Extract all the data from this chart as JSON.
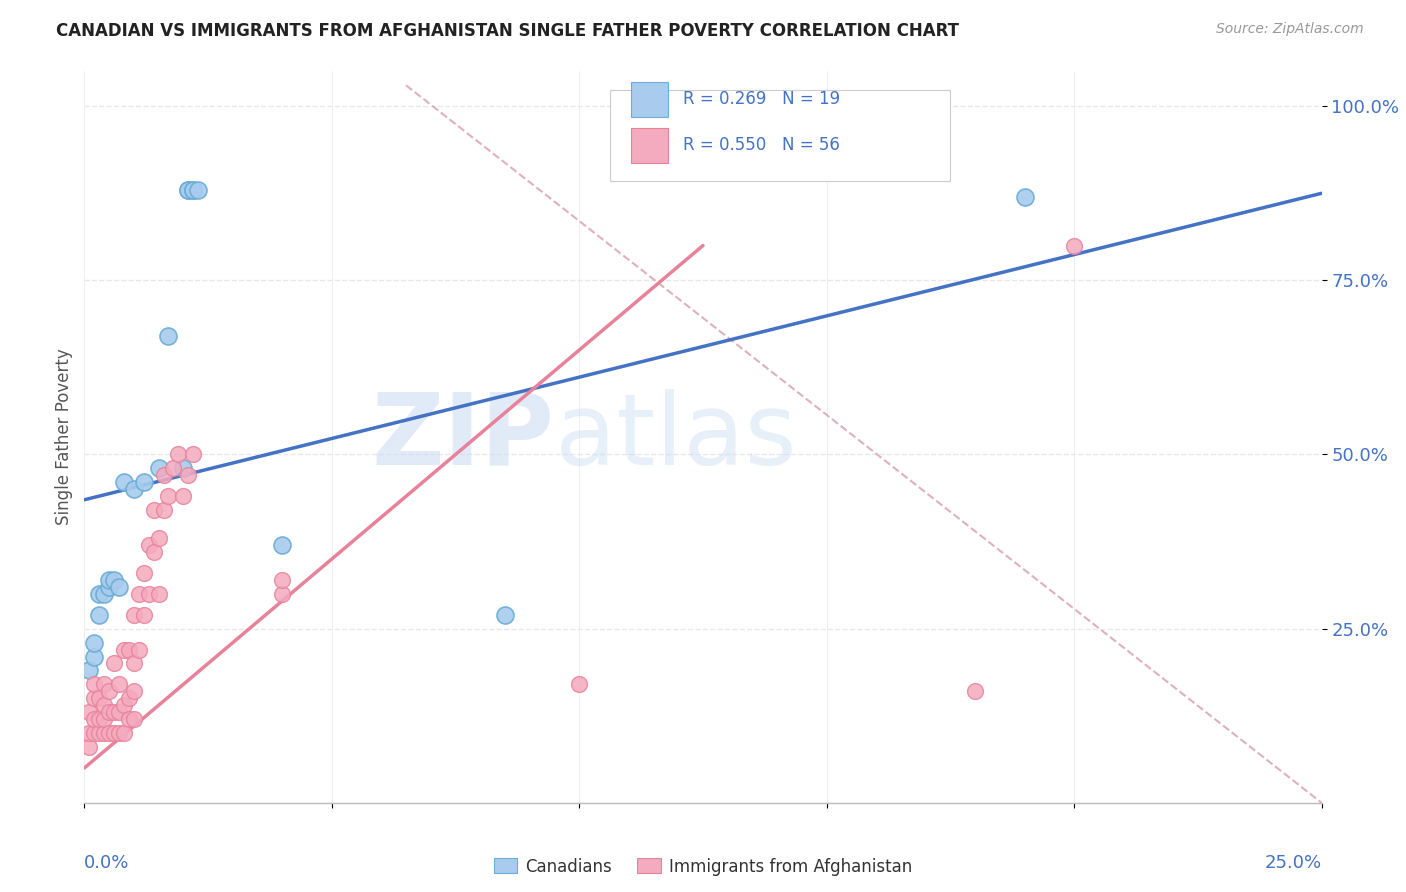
{
  "title": "CANADIAN VS IMMIGRANTS FROM AFGHANISTAN SINGLE FATHER POVERTY CORRELATION CHART",
  "source": "Source: ZipAtlas.com",
  "ylabel": "Single Father Poverty",
  "xmin": 0.0,
  "xmax": 0.25,
  "ymin": 0.0,
  "ymax": 1.05,
  "canadians_color": "#A8CBEE",
  "afghanistan_color": "#F4AABF",
  "canadians_edge": "#6aadd5",
  "afghanistan_edge": "#e8829a",
  "blue_line_color": "#4472C4",
  "pink_line_color": "#E8829A",
  "dashed_line_color": "#E0B0C0",
  "canadians_x": [
    0.001,
    0.002,
    0.002,
    0.003,
    0.003,
    0.004,
    0.005,
    0.005,
    0.006,
    0.007,
    0.008,
    0.01,
    0.012,
    0.015,
    0.017,
    0.02,
    0.021,
    0.021,
    0.022,
    0.022,
    0.023,
    0.04,
    0.085,
    0.19
  ],
  "canadians_y": [
    0.19,
    0.21,
    0.23,
    0.27,
    0.3,
    0.3,
    0.31,
    0.32,
    0.32,
    0.31,
    0.46,
    0.45,
    0.46,
    0.48,
    0.67,
    0.48,
    0.88,
    0.88,
    0.88,
    0.88,
    0.88,
    0.37,
    0.27,
    0.87
  ],
  "afghanistan_x": [
    0.001,
    0.001,
    0.001,
    0.002,
    0.002,
    0.002,
    0.002,
    0.003,
    0.003,
    0.003,
    0.004,
    0.004,
    0.004,
    0.004,
    0.005,
    0.005,
    0.005,
    0.006,
    0.006,
    0.006,
    0.007,
    0.007,
    0.007,
    0.008,
    0.008,
    0.008,
    0.009,
    0.009,
    0.009,
    0.01,
    0.01,
    0.01,
    0.01,
    0.011,
    0.011,
    0.012,
    0.012,
    0.013,
    0.013,
    0.014,
    0.014,
    0.015,
    0.015,
    0.016,
    0.016,
    0.017,
    0.018,
    0.019,
    0.02,
    0.021,
    0.022,
    0.04,
    0.04,
    0.1,
    0.18,
    0.2
  ],
  "afghanistan_y": [
    0.08,
    0.1,
    0.13,
    0.1,
    0.12,
    0.15,
    0.17,
    0.1,
    0.12,
    0.15,
    0.1,
    0.12,
    0.14,
    0.17,
    0.1,
    0.13,
    0.16,
    0.1,
    0.13,
    0.2,
    0.1,
    0.13,
    0.17,
    0.1,
    0.14,
    0.22,
    0.12,
    0.15,
    0.22,
    0.12,
    0.16,
    0.2,
    0.27,
    0.22,
    0.3,
    0.27,
    0.33,
    0.3,
    0.37,
    0.36,
    0.42,
    0.3,
    0.38,
    0.42,
    0.47,
    0.44,
    0.48,
    0.5,
    0.44,
    0.47,
    0.5,
    0.3,
    0.32,
    0.17,
    0.16,
    0.8
  ],
  "blue_line_x": [
    0.0,
    0.25
  ],
  "blue_line_y": [
    0.435,
    0.875
  ],
  "pink_line_x": [
    0.0,
    0.125
  ],
  "pink_line_y": [
    0.05,
    0.8
  ],
  "diag_line_x": [
    0.065,
    0.25
  ],
  "diag_line_y": [
    1.03,
    0.0
  ],
  "watermark_zip": "ZIP",
  "watermark_atlas": "atlas",
  "background_color": "#FFFFFF",
  "grid_color": "#E8E8E8"
}
